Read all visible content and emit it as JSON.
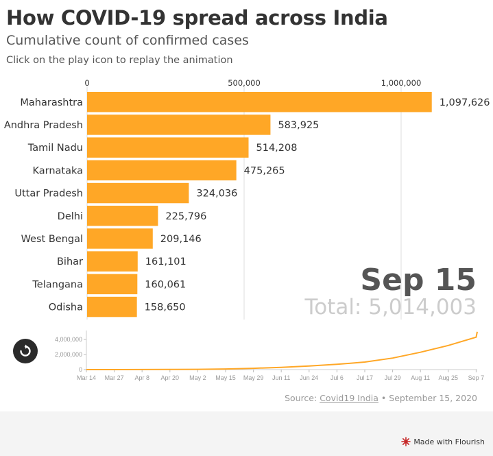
{
  "header": {
    "title": "How COVID-19 spread across India",
    "subtitle": "Cumulative count of confirmed cases",
    "note": "Click on the play icon to replay the animation"
  },
  "chart_data": [
    {
      "type": "bar",
      "orientation": "horizontal",
      "categories": [
        "Maharashtra",
        "Andhra Pradesh",
        "Tamil Nadu",
        "Karnataka",
        "Uttar Pradesh",
        "Delhi",
        "West Bengal",
        "Bihar",
        "Telangana",
        "Odisha"
      ],
      "values": [
        1097626,
        583925,
        514208,
        475265,
        324036,
        225796,
        209146,
        161101,
        160061,
        158650
      ],
      "value_labels": [
        "1,097,626",
        "583,925",
        "514,208",
        "475,265",
        "324,036",
        "225,796",
        "209,146",
        "161,101",
        "160,061",
        "158,650"
      ],
      "xlim": [
        0,
        1100000
      ],
      "x_ticks": [
        0,
        500000,
        1000000
      ],
      "x_tick_labels": [
        "0",
        "500,000",
        "1,000,000"
      ],
      "axis_position": "top",
      "bar_color": "#ffa726",
      "date_label": "Sep 15",
      "total_label": "Total: 5,014,003"
    },
    {
      "type": "area",
      "x_tick_labels": [
        "Mar 14",
        "Mar 27",
        "Apr 8",
        "Apr 20",
        "May 2",
        "May 15",
        "May 29",
        "Jun 11",
        "Jun 24",
        "Jul 6",
        "Jul 17",
        "Jul 29",
        "Aug 11",
        "Aug 25",
        "Sep 7"
      ],
      "y_ticks": [
        0,
        2000000,
        4000000
      ],
      "y_tick_labels": [
        "0",
        "2,000,000",
        "4,000,000"
      ],
      "ylim": [
        0,
        5000000
      ],
      "x": [
        "Mar 14",
        "Mar 27",
        "Apr 8",
        "Apr 20",
        "May 2",
        "May 15",
        "May 29",
        "Jun 11",
        "Jun 24",
        "Jul 6",
        "Jul 17",
        "Jul 29",
        "Aug 11",
        "Aug 25",
        "Sep 7",
        "Sep 15"
      ],
      "values": [
        100,
        900,
        6000,
        18000,
        38000,
        82000,
        175000,
        300000,
        470000,
        700000,
        1000000,
        1530000,
        2300000,
        3200000,
        4300000,
        5014003
      ],
      "line_color": "#ffa726"
    }
  ],
  "controls": {
    "replay_icon": "replay-icon"
  },
  "footer": {
    "source_prefix": "Source: ",
    "source_link": "Covid19 India",
    "source_suffix": " • September 15, 2020",
    "flourish_label": "Made with Flourish",
    "flourish_icon": "flourish-logo-icon"
  }
}
